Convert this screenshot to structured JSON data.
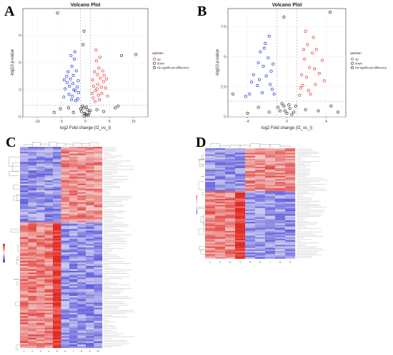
{
  "panels": [
    "A",
    "B",
    "C",
    "D"
  ],
  "chart_data": [
    {
      "type": "scatter",
      "title": "Volcano Plot",
      "xlabel": "log2 Fold change (I2_vs_I)",
      "ylabel": "-log10 p-value",
      "xlim": [
        -13,
        13
      ],
      "ylim": [
        0,
        12
      ],
      "xticks": [
        -10,
        -5,
        0,
        5,
        10
      ],
      "yticks": [
        0,
        3,
        6,
        9
      ],
      "thresholds": {
        "x": [
          -1,
          1
        ],
        "y": 1.3
      },
      "grid": true,
      "legend_position": "right",
      "legend": {
        "title": "updown",
        "items": [
          "up",
          "down",
          "No significant difference"
        ]
      },
      "series": [
        {
          "name": "up",
          "color": "#e8393a",
          "points": [
            [
              1.6,
              2.1
            ],
            [
              2.1,
              2.9
            ],
            [
              2.6,
              3.6
            ],
            [
              3.1,
              4.3
            ],
            [
              1.9,
              5.0
            ],
            [
              2.8,
              5.4
            ],
            [
              3.4,
              2.6
            ],
            [
              2.3,
              6.2
            ],
            [
              3.8,
              3.9
            ],
            [
              1.4,
              2.6
            ],
            [
              2.0,
              1.7
            ],
            [
              2.9,
              1.9
            ],
            [
              3.6,
              5.1
            ],
            [
              4.2,
              3.2
            ],
            [
              2.5,
              4.7
            ],
            [
              3.0,
              6.6
            ],
            [
              1.7,
              3.4
            ],
            [
              2.2,
              7.4
            ],
            [
              3.9,
              4.6
            ],
            [
              4.6,
              2.3
            ],
            [
              1.5,
              4.1
            ],
            [
              2.7,
              2.4
            ],
            [
              3.3,
              3.3
            ],
            [
              4.4,
              4.2
            ],
            [
              2.4,
              3.1
            ]
          ]
        },
        {
          "name": "down",
          "color": "#2b35d6",
          "points": [
            [
              -1.6,
              2.0
            ],
            [
              -2.1,
              2.9
            ],
            [
              -2.6,
              3.7
            ],
            [
              -3.1,
              4.2
            ],
            [
              -1.9,
              5.1
            ],
            [
              -2.8,
              5.6
            ],
            [
              -3.4,
              2.5
            ],
            [
              -2.3,
              6.4
            ],
            [
              -3.8,
              3.8
            ],
            [
              -1.4,
              2.7
            ],
            [
              -2.0,
              1.8
            ],
            [
              -2.9,
              1.9
            ],
            [
              -3.6,
              5.0
            ],
            [
              -4.2,
              3.1
            ],
            [
              -2.5,
              4.6
            ],
            [
              -3.0,
              6.8
            ],
            [
              -1.7,
              3.3
            ],
            [
              -2.2,
              7.2
            ],
            [
              -3.9,
              4.5
            ],
            [
              -4.5,
              2.2
            ],
            [
              -1.5,
              4.0
            ],
            [
              -2.7,
              2.3
            ],
            [
              -3.3,
              3.4
            ],
            [
              -4.4,
              4.1
            ],
            [
              -2.4,
              3.0
            ]
          ]
        },
        {
          "name": "No significant difference",
          "color": "#333333",
          "points": [
            [
              -0.8,
              0.6
            ],
            [
              -0.4,
              1.0
            ],
            [
              0.0,
              0.3
            ],
            [
              0.4,
              0.8
            ],
            [
              0.8,
              0.5
            ],
            [
              -0.6,
              1.2
            ],
            [
              0.2,
              1.1
            ],
            [
              0.6,
              0.2
            ],
            [
              -0.2,
              0.4
            ],
            [
              -1.0,
              0.9
            ],
            [
              1.0,
              0.7
            ],
            [
              -0.3,
              0.1
            ],
            [
              0.3,
              0.2
            ],
            [
              -2.5,
              0.5
            ],
            [
              2.4,
              0.8
            ],
            [
              -3.5,
              1.0
            ],
            [
              3.8,
              0.6
            ],
            [
              -5.2,
              0.9
            ],
            [
              6.2,
              1.0
            ],
            [
              -0.5,
              8.0
            ],
            [
              -0.3,
              9.5
            ],
            [
              -5.8,
              11.5
            ],
            [
              7.5,
              6.8
            ],
            [
              10.5,
              6.9
            ],
            [
              6.8,
              1.2
            ],
            [
              -6.5,
              0.5
            ]
          ]
        }
      ]
    },
    {
      "type": "scatter",
      "title": "Volcano Plot",
      "xlabel": "log2 Fold change (I2_vs_I)",
      "ylabel": "-log10 p-value",
      "xlim": [
        -6,
        6
      ],
      "ylim": [
        0,
        9
      ],
      "xticks": [
        -4,
        0,
        4
      ],
      "yticks": [
        0,
        2.5,
        5,
        7.5
      ],
      "thresholds": {
        "x": [
          -1,
          1
        ],
        "y": 1.3
      },
      "grid": true,
      "legend_position": "right",
      "legend": {
        "title": "updown",
        "items": [
          "up",
          "down",
          "No significant difference"
        ]
      },
      "series": [
        {
          "name": "up",
          "color": "#e8393a",
          "points": [
            [
              1.3,
              1.8
            ],
            [
              1.6,
              2.6
            ],
            [
              2.0,
              3.3
            ],
            [
              2.3,
              4.1
            ],
            [
              1.8,
              4.8
            ],
            [
              2.6,
              5.3
            ],
            [
              2.9,
              2.7
            ],
            [
              2.1,
              6.0
            ],
            [
              3.3,
              3.6
            ],
            [
              1.4,
              2.4
            ],
            [
              2.4,
              1.9
            ],
            [
              3.6,
              4.7
            ],
            [
              2.7,
              6.6
            ],
            [
              1.9,
              7.1
            ],
            [
              3.0,
              5.6
            ],
            [
              1.5,
              3.5
            ],
            [
              2.2,
              2.2
            ],
            [
              3.8,
              3.0
            ],
            [
              1.7,
              5.6
            ],
            [
              2.8,
              4.0
            ]
          ]
        },
        {
          "name": "down",
          "color": "#2b35d6",
          "points": [
            [
              -1.3,
              1.9
            ],
            [
              -1.7,
              2.7
            ],
            [
              -2.1,
              3.4
            ],
            [
              -2.4,
              4.2
            ],
            [
              -1.9,
              4.9
            ],
            [
              -2.7,
              5.4
            ],
            [
              -3.0,
              2.6
            ],
            [
              -2.2,
              6.1
            ],
            [
              -3.4,
              3.5
            ],
            [
              -1.5,
              2.3
            ],
            [
              -2.5,
              2.0
            ],
            [
              -1.8,
              6.7
            ],
            [
              -2.9,
              4.5
            ],
            [
              -1.6,
              3.8
            ],
            [
              -3.6,
              2.9
            ],
            [
              -2.3,
              5.7
            ],
            [
              -1.4,
              4.4
            ],
            [
              -2.8,
              3.1
            ],
            [
              -3.8,
              1.9
            ],
            [
              -4.2,
              1.7
            ]
          ]
        },
        {
          "name": "No significant difference",
          "color": "#333333",
          "points": [
            [
              -0.7,
              0.5
            ],
            [
              -0.3,
              0.9
            ],
            [
              0.0,
              0.3
            ],
            [
              0.3,
              0.7
            ],
            [
              0.7,
              0.4
            ],
            [
              -0.5,
              1.1
            ],
            [
              0.2,
              1.0
            ],
            [
              0.5,
              0.2
            ],
            [
              -0.2,
              0.5
            ],
            [
              0.9,
              0.9
            ],
            [
              -0.9,
              0.8
            ],
            [
              -1.8,
              0.4
            ],
            [
              1.9,
              0.6
            ],
            [
              -2.9,
              0.8
            ],
            [
              3.2,
              0.5
            ],
            [
              -4.0,
              0.3
            ],
            [
              4.5,
              0.9
            ],
            [
              -0.3,
              8.3
            ],
            [
              4.4,
              8.7
            ],
            [
              5.2,
              0.4
            ],
            [
              -5.5,
              1.9
            ]
          ]
        }
      ]
    },
    {
      "type": "heatmap",
      "n_columns": 10,
      "n_rows": 120,
      "value_range": [
        -2,
        2
      ],
      "colors": {
        "low": "#3b3bd8",
        "mid": "#f4f0f4",
        "high": "#e22a22"
      },
      "column_labels": [
        "1",
        "2",
        "3",
        "4",
        "5",
        "6",
        "7",
        "8",
        "9",
        "10"
      ]
    },
    {
      "type": "heatmap",
      "n_columns": 9,
      "n_rows": 72,
      "value_range": [
        -2,
        2
      ],
      "colors": {
        "low": "#3b3bd8",
        "mid": "#f4f0f4",
        "high": "#e22a22"
      },
      "column_labels": [
        "1",
        "2",
        "3",
        "4",
        "5",
        "6",
        "7",
        "8",
        "9"
      ]
    }
  ]
}
